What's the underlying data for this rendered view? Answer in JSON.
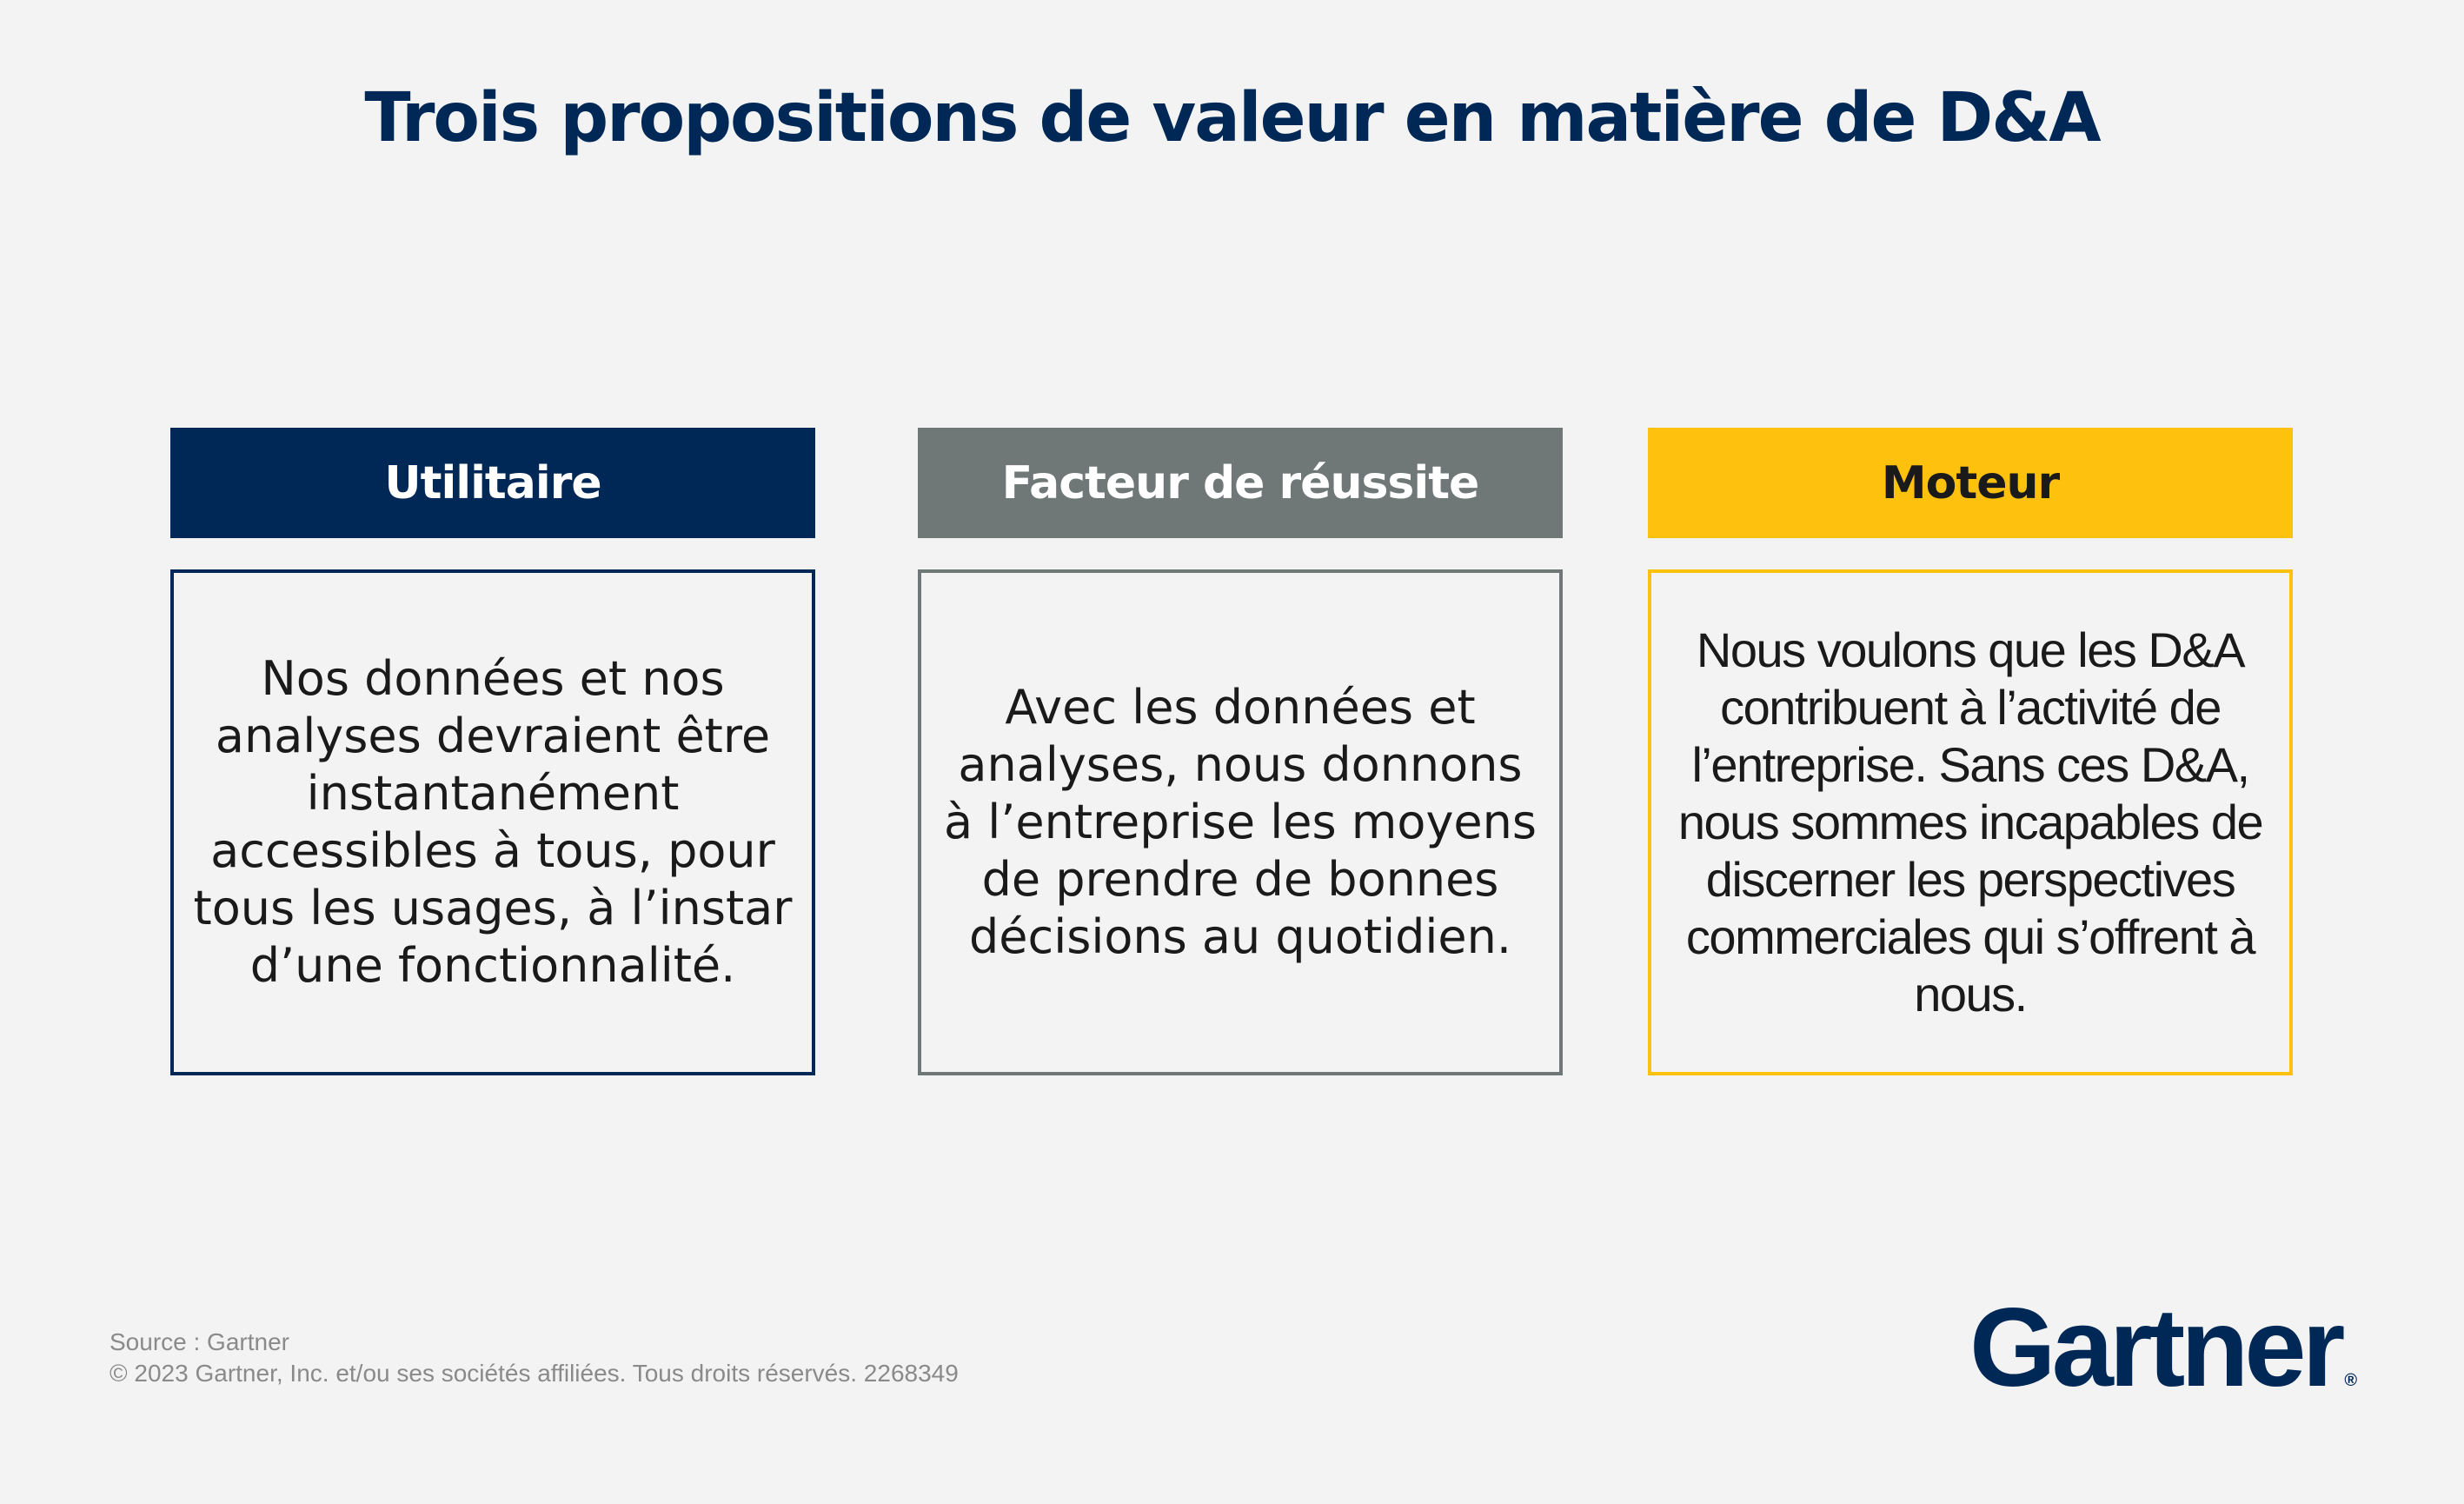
{
  "title": "Trois propositions de valeur en matière de D&A",
  "columns": [
    {
      "header": "Utilitaire",
      "body": "Nos données et nos analyses devraient être instantanément accessibles à tous, pour tous les usages, à l’instar d’une fonctionnalité.",
      "header_bg": "#002856",
      "header_color": "#ffffff",
      "border_color": "#002856"
    },
    {
      "header": "Facteur de réussite",
      "body": "Avec les données et analyses, nous donnons à l’entreprise les moyens de prendre de bonnes décisions au quotidien.",
      "header_bg": "#6f7777",
      "header_color": "#ffffff",
      "border_color": "#6f7777"
    },
    {
      "header": "Moteur",
      "body": "Nous voulons que les D&A contribuent à l’activité de l’entreprise. Sans ces D&A, nous sommes incapables de discerner les perspectives commerciales qui s’offrent à nous.",
      "header_bg": "#fec10d",
      "header_color": "#1a1a1a",
      "border_color": "#fec10d"
    }
  ],
  "footer": {
    "source": "Source : Gartner",
    "copyright": "© 2023 Gartner, Inc. et/ou ses sociétés affiliées. Tous droits réservés. 2268349"
  },
  "logo": {
    "text": "Gartner",
    "registered": "®"
  }
}
